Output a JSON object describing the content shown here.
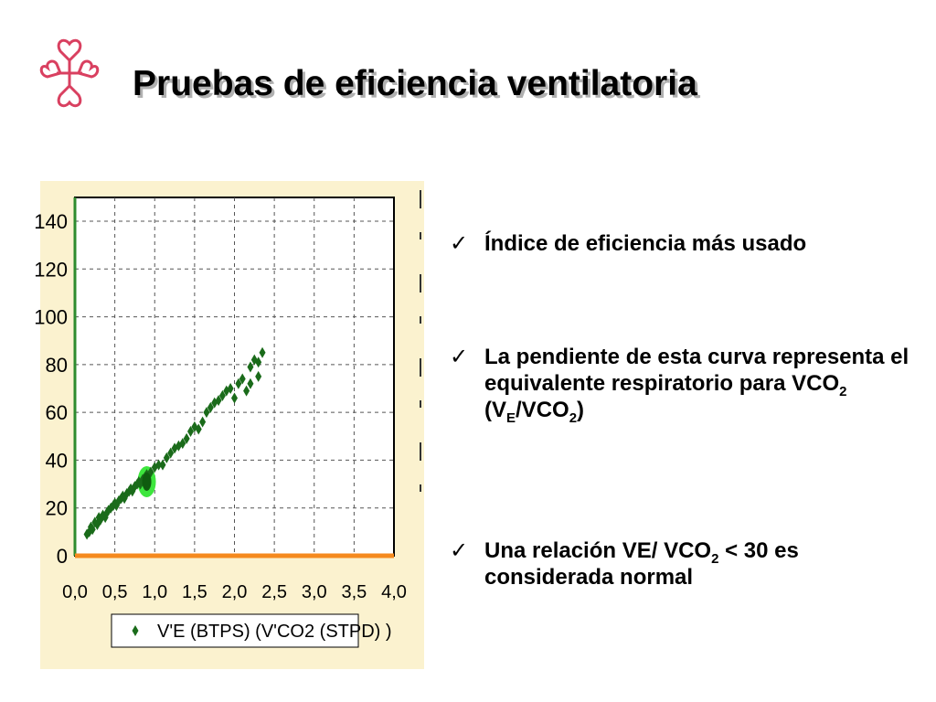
{
  "slide": {
    "title": "Pruebas de eficiencia ventilatoria",
    "logo": {
      "icon": "cross-hearts-logo-icon",
      "color": "#d94060"
    }
  },
  "bullets": [
    {
      "parts": [
        "Índice de eficiencia más usado"
      ]
    },
    {
      "parts": [
        "La pendiente de esta  curva representa el equivalente respiratorio para VCO",
        "2",
        " (V",
        "E",
        "/VCO",
        "2",
        ")"
      ]
    },
    {
      "parts": [
        "Una relación VE/ VCO",
        "2",
        " < 30 es considerada normal"
      ]
    }
  ],
  "chart_data": {
    "type": "scatter",
    "xlim": [
      0,
      4.0
    ],
    "ylim": [
      0,
      150
    ],
    "x_ticks": [
      "0,0",
      "0,5",
      "1,0",
      "1,5",
      "2,0",
      "2,5",
      "3,0",
      "3,5",
      "4,0"
    ],
    "y_ticks": [
      "0",
      "20",
      "40",
      "60",
      "80",
      "100",
      "120",
      "140"
    ],
    "grid": true,
    "legend": {
      "label": "V'E (BTPS)   (V'CO2 (STPD) )",
      "position": "bottom"
    },
    "colors": {
      "points": "#1a6b1a",
      "highlight": "#3de63d",
      "baseline": "#f58a1e",
      "left_axis": "#2e8b2e",
      "background": "#fbf2cf"
    },
    "highlight": {
      "x": 0.9,
      "y": 31
    },
    "points": [
      [
        0.15,
        9
      ],
      [
        0.18,
        10
      ],
      [
        0.2,
        12
      ],
      [
        0.22,
        11
      ],
      [
        0.25,
        14
      ],
      [
        0.28,
        13
      ],
      [
        0.3,
        16
      ],
      [
        0.32,
        15
      ],
      [
        0.35,
        17
      ],
      [
        0.38,
        16
      ],
      [
        0.4,
        18
      ],
      [
        0.42,
        19
      ],
      [
        0.45,
        20
      ],
      [
        0.48,
        21
      ],
      [
        0.5,
        22
      ],
      [
        0.52,
        21
      ],
      [
        0.55,
        23
      ],
      [
        0.58,
        24
      ],
      [
        0.6,
        25
      ],
      [
        0.62,
        24
      ],
      [
        0.65,
        26
      ],
      [
        0.68,
        27
      ],
      [
        0.7,
        28
      ],
      [
        0.72,
        27
      ],
      [
        0.75,
        29
      ],
      [
        0.78,
        30
      ],
      [
        0.8,
        31
      ],
      [
        0.82,
        30
      ],
      [
        0.85,
        32
      ],
      [
        0.88,
        33
      ],
      [
        0.9,
        34
      ],
      [
        0.95,
        35
      ],
      [
        1.0,
        37
      ],
      [
        1.05,
        38
      ],
      [
        1.1,
        38
      ],
      [
        1.15,
        41
      ],
      [
        1.2,
        43
      ],
      [
        1.25,
        45
      ],
      [
        1.3,
        46
      ],
      [
        1.35,
        47
      ],
      [
        1.4,
        49
      ],
      [
        1.45,
        52
      ],
      [
        1.5,
        54
      ],
      [
        1.55,
        53
      ],
      [
        1.6,
        56
      ],
      [
        1.65,
        60
      ],
      [
        1.7,
        62
      ],
      [
        1.75,
        64
      ],
      [
        1.8,
        65
      ],
      [
        1.85,
        67
      ],
      [
        1.9,
        69
      ],
      [
        1.95,
        70
      ],
      [
        2.0,
        66
      ],
      [
        2.05,
        72
      ],
      [
        2.1,
        74
      ],
      [
        2.15,
        69
      ],
      [
        2.2,
        79
      ],
      [
        2.25,
        82
      ],
      [
        2.3,
        81
      ],
      [
        2.35,
        85
      ],
      [
        2.3,
        75
      ],
      [
        2.2,
        72
      ]
    ]
  }
}
